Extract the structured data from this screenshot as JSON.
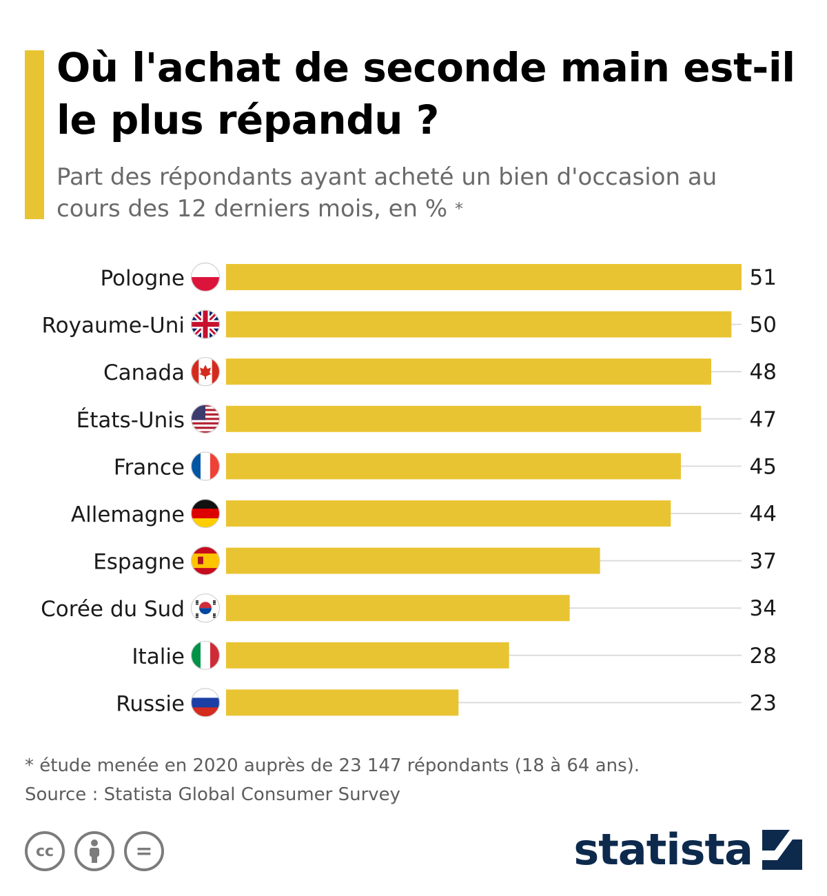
{
  "header": {
    "title": "Où l'achat de seconde main est-il le plus répandu ?",
    "subtitle": "Part des répondants ayant acheté un bien d'occasion au cours des 12 derniers mois, en %",
    "subtitle_mark": "*"
  },
  "colors": {
    "bar": "#e9c432",
    "accent": "#e9c432",
    "brand": "#0d2a4d",
    "gridline": "#dcdcdc"
  },
  "chart_data": {
    "type": "bar",
    "orientation": "horizontal",
    "categories": [
      "Pologne",
      "Royaume-Uni",
      "Canada",
      "États-Unis",
      "France",
      "Allemagne",
      "Espagne",
      "Corée du Sud",
      "Italie",
      "Russie"
    ],
    "values": [
      51,
      50,
      48,
      47,
      45,
      44,
      37,
      34,
      28,
      23
    ],
    "flags": [
      "poland-flag-icon",
      "uk-flag-icon",
      "canada-flag-icon",
      "usa-flag-icon",
      "france-flag-icon",
      "germany-flag-icon",
      "spain-flag-icon",
      "south-korea-flag-icon",
      "italy-flag-icon",
      "russia-flag-icon"
    ],
    "xlim": [
      0,
      51
    ],
    "data_labels": true,
    "grid": false
  },
  "footer": {
    "note": "* étude menée en 2020 auprès de 23 147 répondants (18 à 64 ans).",
    "source": "Source : Statista Global Consumer Survey"
  },
  "license": {
    "icons": [
      "cc-icon",
      "attribution-icon",
      "no-derivatives-icon"
    ],
    "cc_text": "cc",
    "nd_text": "="
  },
  "brand": {
    "name": "statista",
    "logo_icon": "statista-logo-icon"
  }
}
